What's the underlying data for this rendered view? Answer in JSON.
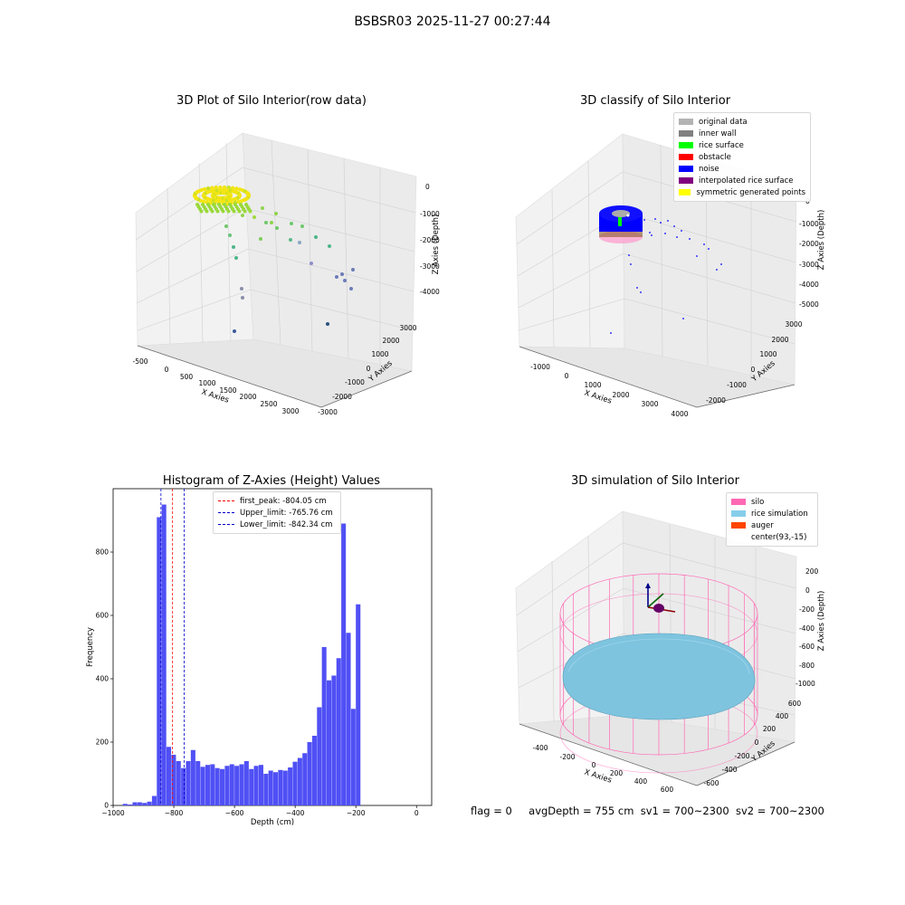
{
  "suptitle": "BSBSR03 2025-11-27 00:27:44",
  "footer": {
    "flag": "flag = 0",
    "avg_depth": "avgDepth = 755 cm",
    "sv1": "sv1 = 700~2300",
    "sv2": "sv2 = 700~2300"
  },
  "panel1": {
    "title": "3D Plot of Silo Interior(row data)",
    "xlabel": "X Axies",
    "ylabel": "Y Axies",
    "zlabel": "Z Axies (Depth)",
    "xticks": [
      "-500",
      "0",
      "500",
      "1000",
      "1500",
      "2000",
      "2500",
      "3000"
    ],
    "yticks": [
      "-3000",
      "-2000",
      "-1000",
      "0",
      "1000",
      "2000",
      "3000"
    ],
    "zticks": [
      "0",
      "-1000",
      "-2000",
      "-3000",
      "-4000"
    ]
  },
  "panel2": {
    "title": "3D classify of Silo Interior",
    "xlabel": "X Axies",
    "ylabel": "Y Axies",
    "zlabel": "Z Axies (Depth)",
    "xticks": [
      "-1000",
      "0",
      "1000",
      "2000",
      "3000",
      "4000"
    ],
    "yticks": [
      "-2000",
      "-1000",
      "0",
      "1000",
      "2000",
      "3000"
    ],
    "zticks": [
      "0",
      "-1000",
      "-2000",
      "-3000",
      "-4000",
      "-5000"
    ],
    "legend": [
      {
        "label": "original data",
        "color": "#b3b3b3"
      },
      {
        "label": "inner wall",
        "color": "#808080"
      },
      {
        "label": "rice surface",
        "color": "#00ff00"
      },
      {
        "label": "obstacle",
        "color": "#ff0000"
      },
      {
        "label": "noise",
        "color": "#0000ff"
      },
      {
        "label": "interpolated rice surface",
        "color": "#800080"
      },
      {
        "label": "symmetric generated points",
        "color": "#ffff00"
      }
    ]
  },
  "panel4": {
    "title": "3D simulation of Silo Interior",
    "xlabel": "X Axies",
    "ylabel": "Y Axies",
    "zlabel": "Z Axies (Depth)",
    "xticks": [
      "-400",
      "-200",
      "0",
      "200",
      "400",
      "600"
    ],
    "yticks": [
      "-600",
      "-400",
      "-200",
      "0",
      "200",
      "400",
      "600"
    ],
    "zticks": [
      "200",
      "0",
      "-200",
      "-400",
      "-600",
      "-800",
      "-1000"
    ],
    "legend": [
      {
        "label": "silo",
        "color": "#ff69b4"
      },
      {
        "label": "rice simulation",
        "color": "#87ceeb"
      },
      {
        "label": "auger",
        "color": "#ff4500"
      },
      {
        "label": "center(93,-15)",
        "color": "none"
      }
    ]
  },
  "chart_data": {
    "type": "bar",
    "title": "Histogram of Z-Axies (Height) Values",
    "xlabel": "Depth (cm)",
    "ylabel": "Frequency",
    "xlim": [
      -1000,
      50
    ],
    "ylim": [
      0,
      1000
    ],
    "xticks": [
      -1000,
      -800,
      -600,
      -400,
      -200,
      0
    ],
    "yticks": [
      0,
      200,
      400,
      600,
      800
    ],
    "bin_width": 16,
    "bin_start": -968,
    "values": [
      5,
      3,
      10,
      10,
      8,
      12,
      30,
      910,
      950,
      185,
      160,
      140,
      118,
      140,
      175,
      140,
      122,
      128,
      130,
      118,
      115,
      125,
      130,
      125,
      130,
      140,
      115,
      125,
      128,
      100,
      110,
      105,
      112,
      110,
      120,
      138,
      150,
      165,
      200,
      220,
      310,
      500,
      395,
      410,
      465,
      890,
      545,
      305,
      635
    ],
    "color": "#5050f5",
    "lines": [
      {
        "label": "first_peak: -804.05 cm",
        "x": -804.05,
        "color": "#ff0000"
      },
      {
        "label": "Upper_limit: -765.76 cm",
        "x": -765.76,
        "color": "#0000cc"
      },
      {
        "label": "Lower_limit: -842.34 cm",
        "x": -842.34,
        "color": "#0000cc"
      }
    ],
    "legend_position": "top-center"
  }
}
